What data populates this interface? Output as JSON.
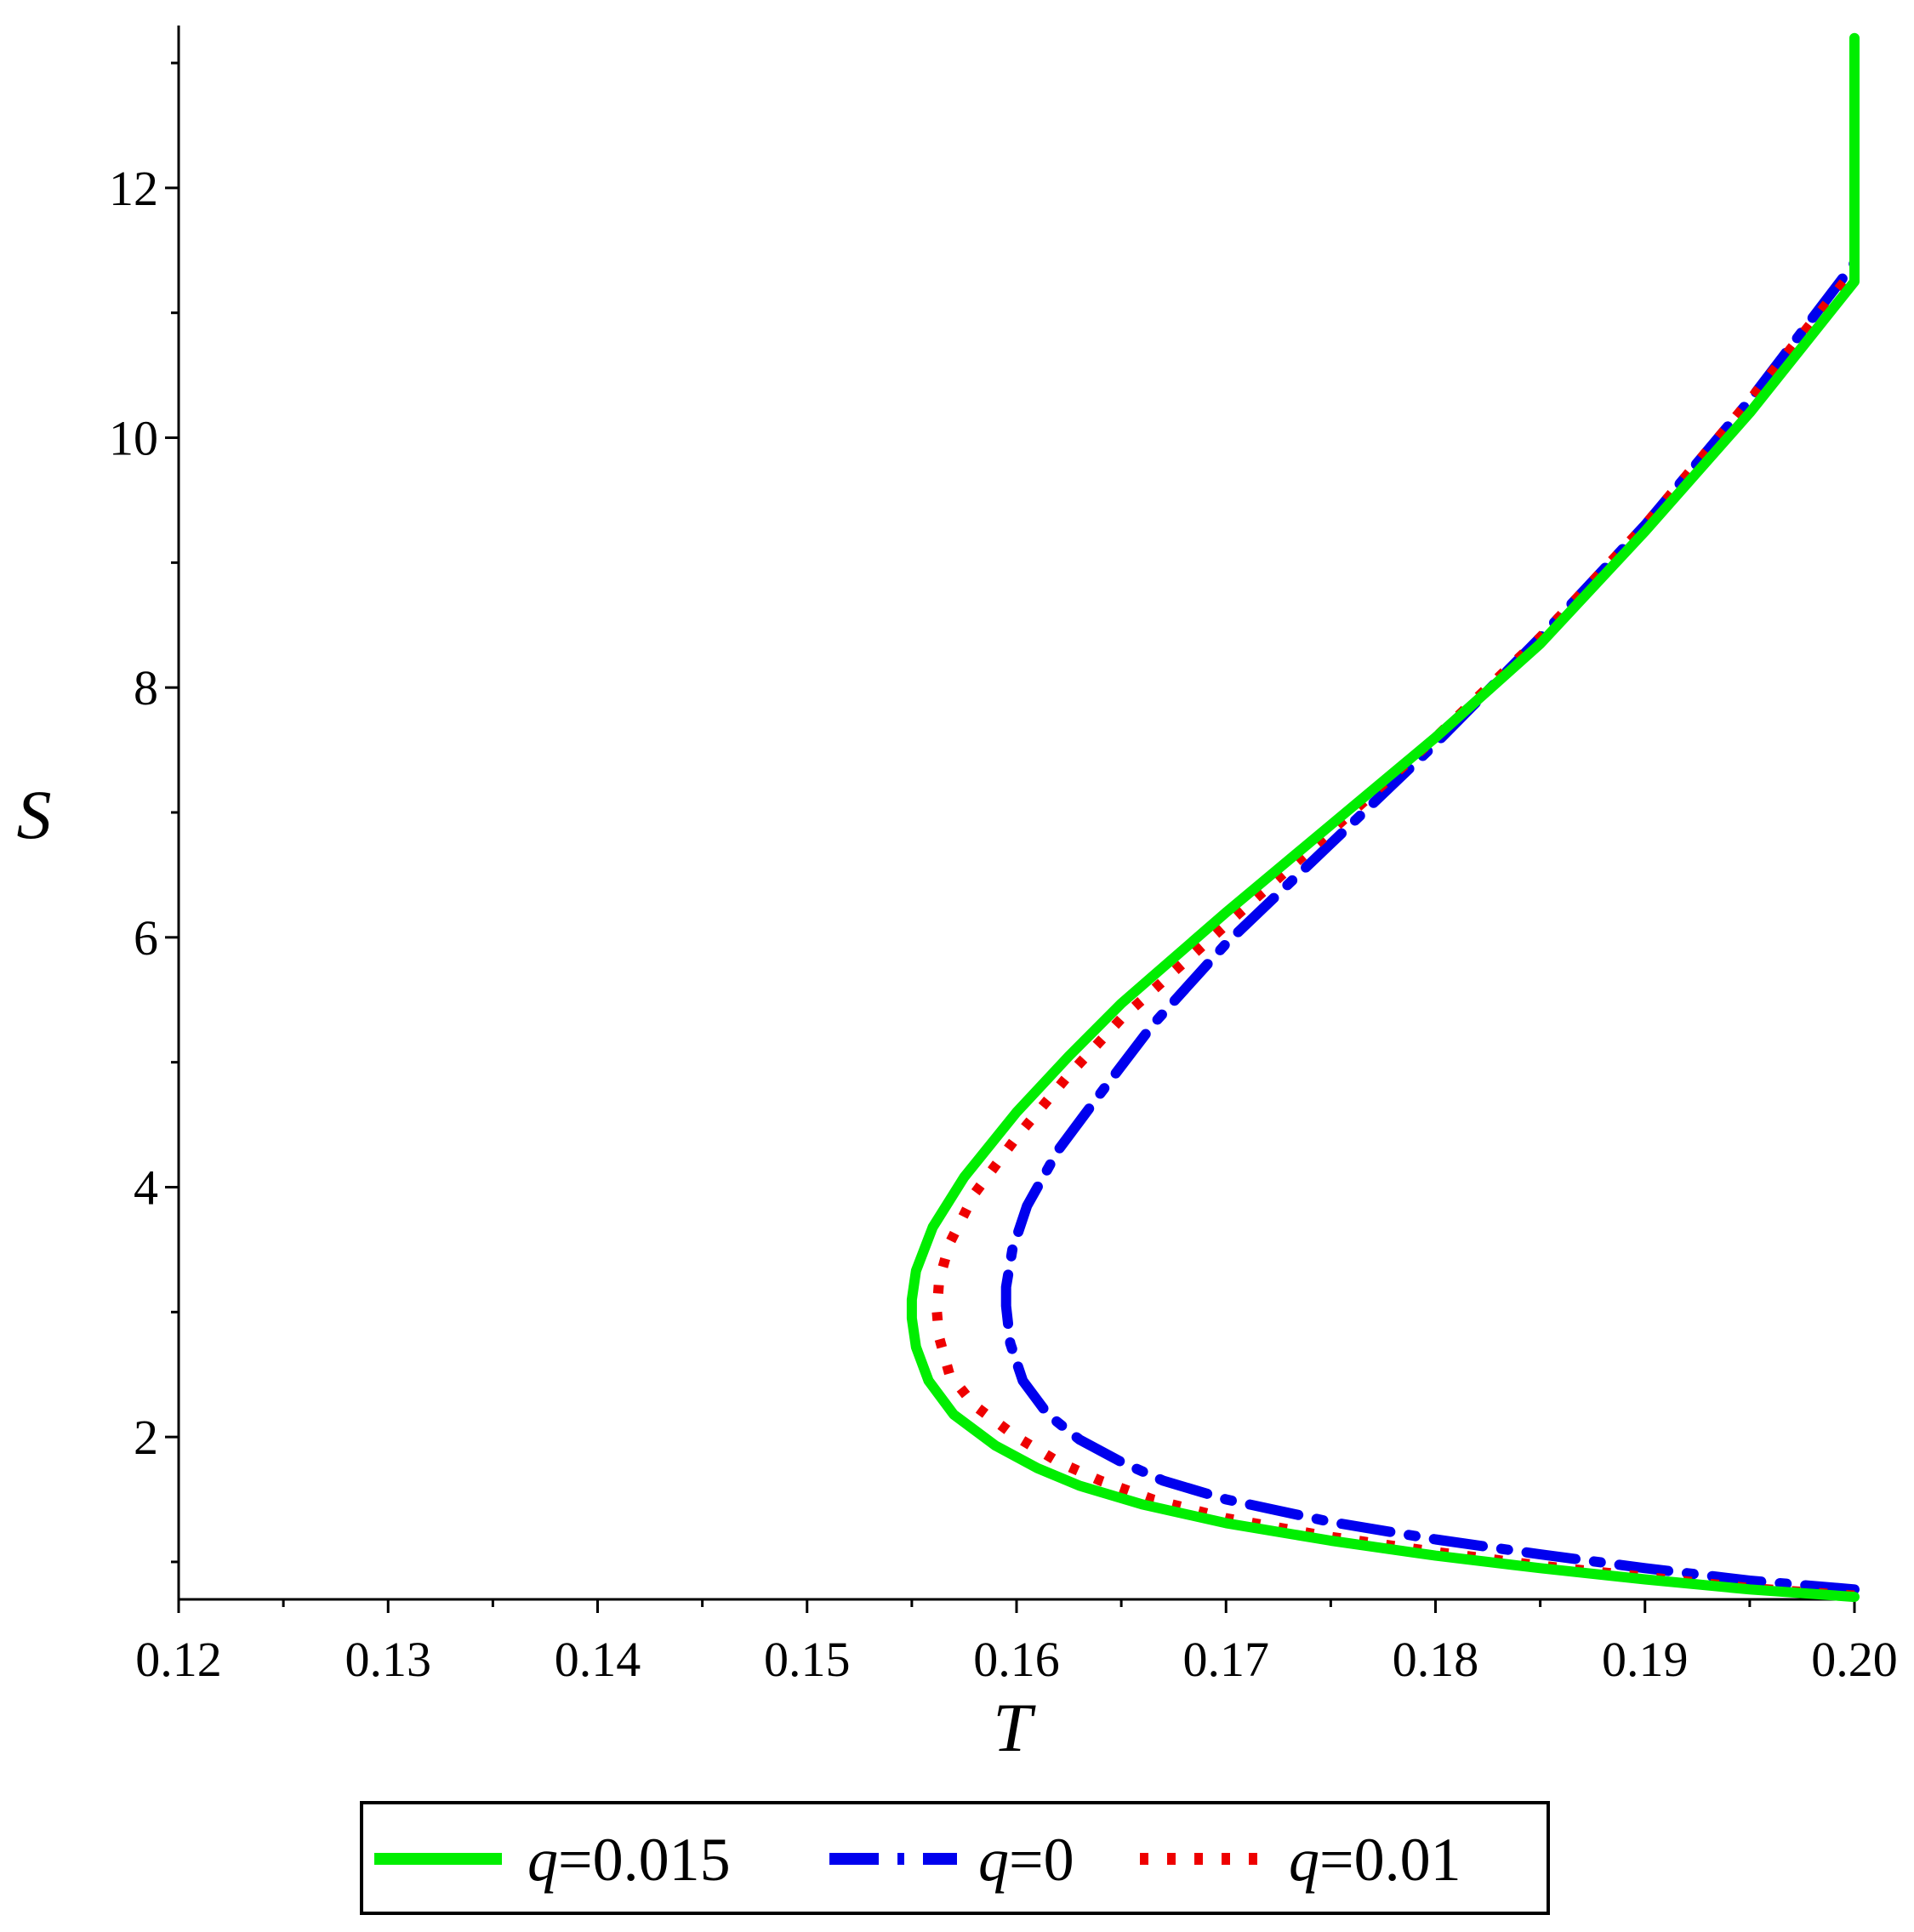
{
  "chart_data": {
    "type": "line",
    "xlabel": "T",
    "ylabel": "S",
    "xlim": [
      0.12,
      0.2
    ],
    "ylim": [
      0.7,
      13.3
    ],
    "x_ticks": [
      0.12,
      0.13,
      0.14,
      0.15,
      0.16,
      0.17,
      0.18,
      0.19,
      0.2
    ],
    "x_tick_labels": [
      "0.12",
      "0.13",
      "0.14",
      "0.15",
      "0.16",
      "0.17",
      "0.18",
      "0.19",
      "0.20"
    ],
    "y_ticks": [
      2,
      4,
      6,
      8,
      10,
      12
    ],
    "y_tick_labels": [
      "2",
      "4",
      "6",
      "8",
      "10",
      "12"
    ],
    "grid": false,
    "legend_position": "bottom",
    "series": [
      {
        "name": "q=0.015",
        "legend_var": "q",
        "legend_value": "=0.015",
        "color": "#00ee00",
        "style": "solid",
        "points": [
          [
            0.2,
            0.72
          ],
          [
            0.195,
            0.78
          ],
          [
            0.19,
            0.86
          ],
          [
            0.185,
            0.95
          ],
          [
            0.18,
            1.05
          ],
          [
            0.175,
            1.17
          ],
          [
            0.17,
            1.31
          ],
          [
            0.166,
            1.46
          ],
          [
            0.163,
            1.61
          ],
          [
            0.161,
            1.75
          ],
          [
            0.159,
            1.93
          ],
          [
            0.157,
            2.18
          ],
          [
            0.1558,
            2.45
          ],
          [
            0.1552,
            2.72
          ],
          [
            0.155,
            2.95
          ],
          [
            0.155,
            3.1
          ],
          [
            0.1552,
            3.33
          ],
          [
            0.156,
            3.68
          ],
          [
            0.1575,
            4.08
          ],
          [
            0.16,
            4.6
          ],
          [
            0.1625,
            5.05
          ],
          [
            0.165,
            5.47
          ],
          [
            0.17,
            6.2
          ],
          [
            0.175,
            6.9
          ],
          [
            0.18,
            7.6
          ],
          [
            0.185,
            8.35
          ],
          [
            0.19,
            9.25
          ],
          [
            0.195,
            10.2
          ],
          [
            0.2,
            11.25
          ],
          [
            0.2,
            13.2
          ]
        ]
      },
      {
        "name": "q=0",
        "legend_var": "q",
        "legend_value": "=0",
        "color": "#0000ee",
        "style": "dashdot",
        "points": [
          [
            0.2,
            0.78
          ],
          [
            0.195,
            0.85
          ],
          [
            0.19,
            0.95
          ],
          [
            0.185,
            1.06
          ],
          [
            0.18,
            1.18
          ],
          [
            0.175,
            1.32
          ],
          [
            0.17,
            1.5
          ],
          [
            0.167,
            1.65
          ],
          [
            0.165,
            1.8
          ],
          [
            0.163,
            1.98
          ],
          [
            0.1615,
            2.18
          ],
          [
            0.1603,
            2.45
          ],
          [
            0.1597,
            2.75
          ],
          [
            0.1595,
            3.05
          ],
          [
            0.1595,
            3.2
          ],
          [
            0.1598,
            3.5
          ],
          [
            0.1605,
            3.85
          ],
          [
            0.162,
            4.3
          ],
          [
            0.164,
            4.75
          ],
          [
            0.1665,
            5.3
          ],
          [
            0.17,
            5.95
          ],
          [
            0.175,
            6.75
          ],
          [
            0.18,
            7.55
          ],
          [
            0.185,
            8.4
          ],
          [
            0.19,
            9.3
          ],
          [
            0.195,
            10.3
          ],
          [
            0.2,
            11.4
          ],
          [
            0.2,
            12.8
          ]
        ]
      },
      {
        "name": "q=0.01",
        "legend_var": "q",
        "legend_value": "=0.01",
        "color": "#ee0000",
        "style": "dotted",
        "points": [
          [
            0.2,
            0.73
          ],
          [
            0.195,
            0.79
          ],
          [
            0.19,
            0.88
          ],
          [
            0.185,
            0.97
          ],
          [
            0.18,
            1.08
          ],
          [
            0.175,
            1.2
          ],
          [
            0.17,
            1.35
          ],
          [
            0.1665,
            1.5
          ],
          [
            0.164,
            1.65
          ],
          [
            0.162,
            1.8
          ],
          [
            0.16,
            2.0
          ],
          [
            0.158,
            2.25
          ],
          [
            0.1568,
            2.5
          ],
          [
            0.1563,
            2.8
          ],
          [
            0.1562,
            3.0
          ],
          [
            0.1563,
            3.25
          ],
          [
            0.1568,
            3.55
          ],
          [
            0.158,
            3.95
          ],
          [
            0.16,
            4.4
          ],
          [
            0.1625,
            4.9
          ],
          [
            0.165,
            5.35
          ],
          [
            0.17,
            6.1
          ],
          [
            0.175,
            6.85
          ],
          [
            0.18,
            7.6
          ],
          [
            0.185,
            8.4
          ],
          [
            0.19,
            9.3
          ],
          [
            0.195,
            10.3
          ],
          [
            0.2,
            11.35
          ],
          [
            0.2,
            13.0
          ]
        ]
      }
    ]
  }
}
